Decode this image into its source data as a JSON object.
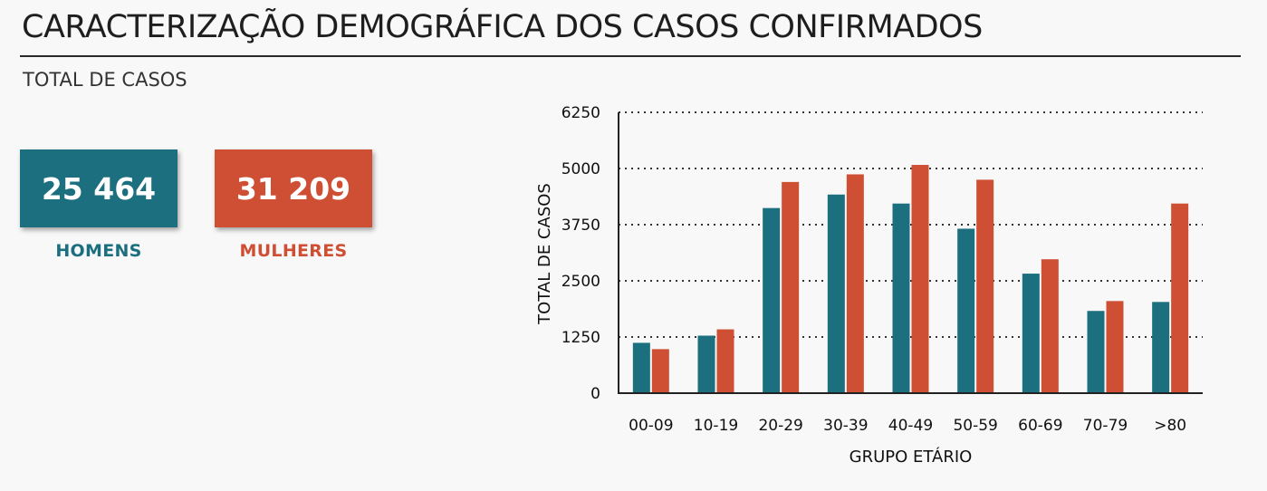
{
  "header": {
    "title": "CARACTERIZAÇÃO DEMOGRÁFICA DOS CASOS CONFIRMADOS",
    "subtitle": "TOTAL DE CASOS"
  },
  "kpis": {
    "men": {
      "value": "25 464",
      "label": "HOMENS",
      "color": "#1c6f7e"
    },
    "women": {
      "value": "31 209",
      "label": "MULHERES",
      "color": "#cf4f35"
    }
  },
  "chart_data": {
    "type": "bar",
    "xlabel": "GRUPO ETÁRIO",
    "ylabel": "TOTAL DE CASOS",
    "ylim": [
      0,
      6250
    ],
    "yticks": [
      0,
      1250,
      2500,
      3750,
      5000,
      6250
    ],
    "grid": "horizontal dotted",
    "categories": [
      "00-09",
      "10-19",
      "20-29",
      "30-39",
      "40-49",
      "50-59",
      "60-69",
      "70-79",
      ">80"
    ],
    "series": [
      {
        "name": "HOMENS",
        "color": "#1c6f7e",
        "values": [
          1120,
          1280,
          4120,
          4420,
          4220,
          3660,
          2660,
          1830,
          2030
        ]
      },
      {
        "name": "MULHERES",
        "color": "#cf4f35",
        "values": [
          980,
          1420,
          4700,
          4870,
          5080,
          4750,
          2980,
          2050,
          4220
        ]
      }
    ]
  }
}
